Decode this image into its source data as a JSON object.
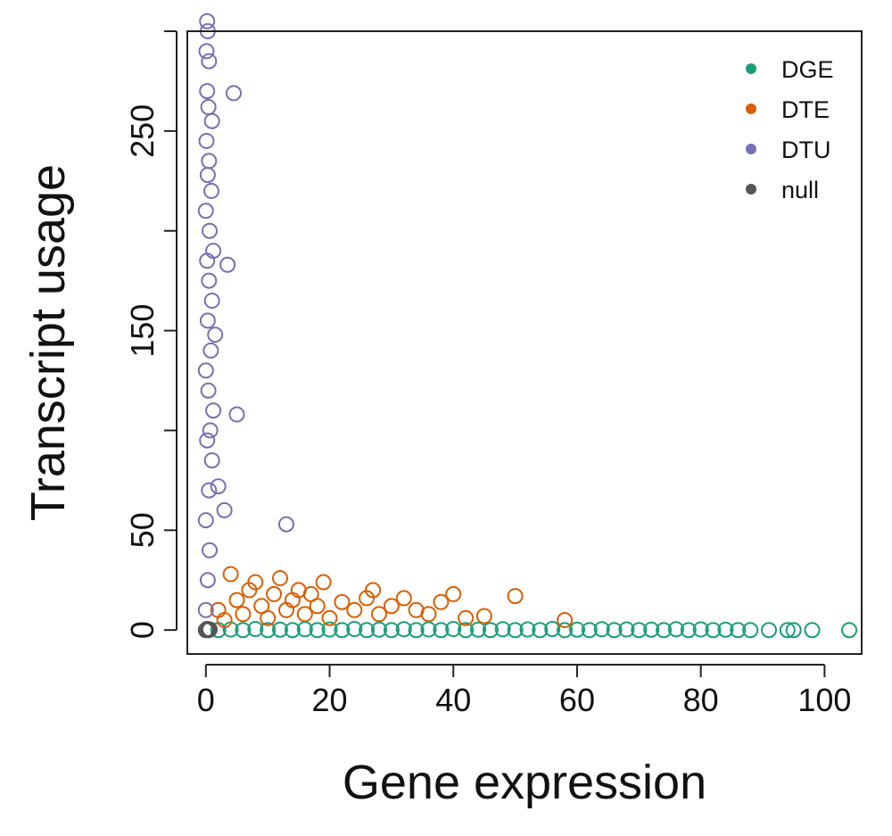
{
  "chart_data": {
    "type": "scatter",
    "xlabel": "Gene expression",
    "ylabel": "Transcript usage",
    "xlim": [
      -3,
      106
    ],
    "ylim": [
      -12,
      300
    ],
    "x_ticks": [
      0,
      20,
      40,
      60,
      80,
      100
    ],
    "y_ticks": [
      0,
      50,
      100,
      150,
      200,
      250,
      300
    ],
    "y_tick_labels": [
      "0",
      "50",
      "",
      "150",
      "",
      "250",
      ""
    ],
    "legend": {
      "position": "top-right",
      "marker": "filled-circle"
    },
    "series": [
      {
        "name": "DGE",
        "color": "#1b9e77",
        "marker": "open-circle",
        "points": [
          [
            2,
            0
          ],
          [
            4,
            0.3
          ],
          [
            6,
            0
          ],
          [
            8,
            0.5
          ],
          [
            10,
            0
          ],
          [
            12,
            0.2
          ],
          [
            14,
            0
          ],
          [
            16,
            0.4
          ],
          [
            18,
            0
          ],
          [
            20,
            0.3
          ],
          [
            22,
            0
          ],
          [
            24,
            0.5
          ],
          [
            26,
            0
          ],
          [
            28,
            0.2
          ],
          [
            30,
            0
          ],
          [
            32,
            0.4
          ],
          [
            34,
            0
          ],
          [
            36,
            0.3
          ],
          [
            38,
            0
          ],
          [
            40,
            0.5
          ],
          [
            42,
            0
          ],
          [
            44,
            0.2
          ],
          [
            46,
            0
          ],
          [
            48,
            0.4
          ],
          [
            50,
            0
          ],
          [
            52,
            0.3
          ],
          [
            54,
            0
          ],
          [
            56,
            0.5
          ],
          [
            58,
            0
          ],
          [
            60,
            0.2
          ],
          [
            62,
            0
          ],
          [
            64,
            0.4
          ],
          [
            66,
            0
          ],
          [
            68,
            0.3
          ],
          [
            70,
            0
          ],
          [
            72,
            0.2
          ],
          [
            74,
            0
          ],
          [
            76,
            0.4
          ],
          [
            78,
            0
          ],
          [
            80,
            0.3
          ],
          [
            82,
            0
          ],
          [
            84,
            0.2
          ],
          [
            86,
            0
          ],
          [
            88,
            0
          ],
          [
            91,
            0
          ],
          [
            94,
            0
          ],
          [
            95,
            0
          ],
          [
            98,
            0
          ],
          [
            104,
            0
          ]
        ]
      },
      {
        "name": "DTE",
        "color": "#d95f02",
        "marker": "open-circle",
        "points": [
          [
            2,
            10
          ],
          [
            3,
            5
          ],
          [
            4,
            28
          ],
          [
            5,
            15
          ],
          [
            6,
            8
          ],
          [
            7,
            20
          ],
          [
            8,
            24
          ],
          [
            9,
            12
          ],
          [
            10,
            6
          ],
          [
            11,
            18
          ],
          [
            12,
            26
          ],
          [
            13,
            10
          ],
          [
            14,
            15
          ],
          [
            15,
            20
          ],
          [
            16,
            8
          ],
          [
            17,
            18
          ],
          [
            18,
            12
          ],
          [
            19,
            24
          ],
          [
            20,
            6
          ],
          [
            22,
            14
          ],
          [
            24,
            10
          ],
          [
            26,
            16
          ],
          [
            27,
            20
          ],
          [
            28,
            8
          ],
          [
            30,
            12
          ],
          [
            32,
            16
          ],
          [
            34,
            10
          ],
          [
            36,
            8
          ],
          [
            38,
            14
          ],
          [
            40,
            18
          ],
          [
            42,
            6
          ],
          [
            45,
            7
          ],
          [
            50,
            17
          ],
          [
            58,
            5
          ]
        ]
      },
      {
        "name": "DTU",
        "color": "#7570b3",
        "marker": "open-circle",
        "points": [
          [
            0,
            10
          ],
          [
            0.3,
            25
          ],
          [
            0.6,
            40
          ],
          [
            0,
            55
          ],
          [
            0.5,
            70
          ],
          [
            1,
            85
          ],
          [
            0.2,
            95
          ],
          [
            0.7,
            100
          ],
          [
            1.2,
            110
          ],
          [
            0.4,
            120
          ],
          [
            0,
            130
          ],
          [
            0.8,
            140
          ],
          [
            1.5,
            148
          ],
          [
            0.3,
            155
          ],
          [
            1,
            165
          ],
          [
            0.5,
            175
          ],
          [
            0.2,
            185
          ],
          [
            1.2,
            190
          ],
          [
            0.6,
            200
          ],
          [
            0,
            210
          ],
          [
            0.9,
            220
          ],
          [
            0.3,
            228
          ],
          [
            0.5,
            235
          ],
          [
            0.1,
            245
          ],
          [
            1,
            255
          ],
          [
            0.4,
            262
          ],
          [
            0.2,
            270
          ],
          [
            0.5,
            285
          ],
          [
            0.1,
            290
          ],
          [
            0.3,
            300
          ],
          [
            0.2,
            305
          ],
          [
            5,
            108
          ],
          [
            13,
            53
          ],
          [
            3,
            60
          ],
          [
            4.5,
            269
          ],
          [
            3.5,
            183
          ],
          [
            2,
            72
          ]
        ]
      },
      {
        "name": "null",
        "color": "#555555",
        "marker": "open-circle",
        "points": [
          [
            0,
            0
          ],
          [
            0.2,
            0.5
          ],
          [
            0.4,
            0
          ],
          [
            0.6,
            0.3
          ]
        ]
      }
    ]
  }
}
